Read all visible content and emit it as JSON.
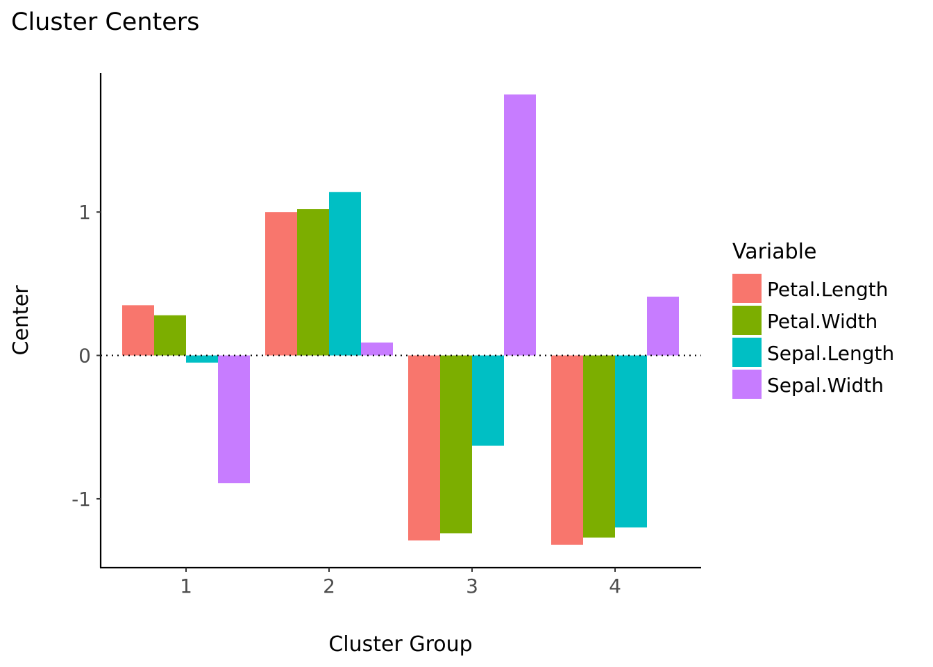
{
  "chart_data": {
    "type": "bar",
    "title": "Cluster Centers",
    "xlabel": "Cluster Group",
    "ylabel": "Center",
    "categories": [
      "1",
      "2",
      "3",
      "4"
    ],
    "yticks": [
      -1,
      0,
      1
    ],
    "ylim": [
      -1.48,
      1.97
    ],
    "grid": false,
    "reference_line": {
      "y": 0,
      "style": "dotted"
    },
    "legend": {
      "title": "Variable",
      "placement": "right"
    },
    "series": [
      {
        "name": "Petal.Length",
        "color": "#F8766D",
        "values": [
          0.35,
          1.0,
          -1.29,
          -1.32
        ]
      },
      {
        "name": "Petal.Width",
        "color": "#7CAE00",
        "values": [
          0.28,
          1.02,
          -1.24,
          -1.27
        ]
      },
      {
        "name": "Sepal.Length",
        "color": "#00BFC4",
        "values": [
          -0.05,
          1.14,
          -0.63,
          -1.2
        ]
      },
      {
        "name": "Sepal.Width",
        "color": "#C77CFF",
        "values": [
          -0.89,
          0.09,
          1.82,
          0.41
        ]
      }
    ]
  }
}
